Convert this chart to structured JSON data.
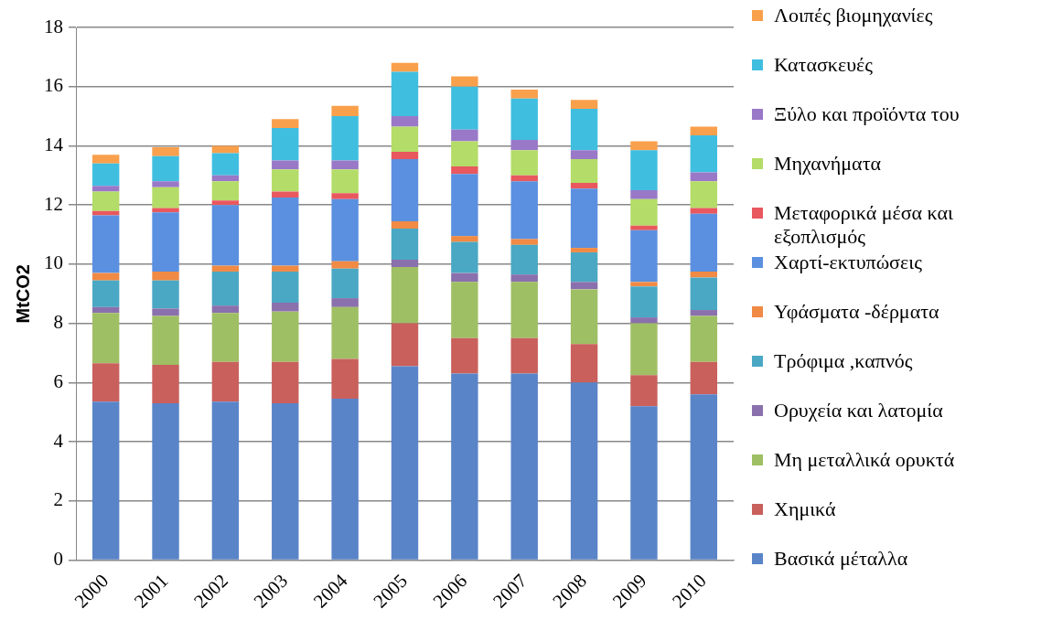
{
  "chart_data": {
    "type": "bar",
    "stacked": true,
    "ylabel": "MtCO2",
    "categories": [
      "2000",
      "2001",
      "2002",
      "2003",
      "2004",
      "2005",
      "2006",
      "2007",
      "2008",
      "2009",
      "2010"
    ],
    "ylim": [
      0,
      18
    ],
    "yticks": [
      0,
      2,
      4,
      6,
      8,
      10,
      12,
      14,
      16,
      18
    ],
    "grid": "y",
    "legend": "right",
    "series": [
      {
        "name": "Βασικά μέταλλα",
        "color": "#5a84c8",
        "values": [
          5.35,
          5.3,
          5.35,
          5.3,
          5.45,
          6.55,
          6.3,
          6.3,
          6.0,
          5.2,
          5.6
        ]
      },
      {
        "name": "Χημικά",
        "color": "#c9605c",
        "values": [
          1.3,
          1.3,
          1.35,
          1.4,
          1.35,
          1.45,
          1.2,
          1.2,
          1.3,
          1.05,
          1.1
        ]
      },
      {
        "name": "Μη μεταλλικά ορυκτά",
        "color": "#9fbf64",
        "values": [
          1.7,
          1.65,
          1.65,
          1.7,
          1.75,
          1.9,
          1.9,
          1.9,
          1.85,
          1.75,
          1.55
        ]
      },
      {
        "name": "Ορυχεία και λατομία",
        "color": "#8a70ac",
        "values": [
          0.2,
          0.25,
          0.25,
          0.3,
          0.3,
          0.25,
          0.3,
          0.25,
          0.25,
          0.2,
          0.2
        ]
      },
      {
        "name": "Τρόφιμα ,καπνός",
        "color": "#4aa8c4",
        "values": [
          0.9,
          0.95,
          1.15,
          1.05,
          1.0,
          1.05,
          1.05,
          1.0,
          1.0,
          1.05,
          1.1
        ]
      },
      {
        "name": "Υφάσματα -δέρματα",
        "color": "#f08a44",
        "values": [
          0.25,
          0.3,
          0.2,
          0.2,
          0.25,
          0.25,
          0.2,
          0.2,
          0.15,
          0.15,
          0.2
        ]
      },
      {
        "name": "Χαρτί-εκτυπώσεις",
        "color": "#5b90e0",
        "values": [
          1.95,
          2.0,
          2.05,
          2.3,
          2.1,
          2.1,
          2.1,
          1.95,
          2.0,
          1.75,
          1.95
        ]
      },
      {
        "name": "Μεταφορικά μέσα και εξοπλισμός",
        "color": "#e8585e",
        "values": [
          0.15,
          0.15,
          0.15,
          0.2,
          0.2,
          0.25,
          0.25,
          0.2,
          0.2,
          0.15,
          0.2
        ]
      },
      {
        "name": "Μηχανήματα",
        "color": "#b4dc68",
        "values": [
          0.65,
          0.7,
          0.65,
          0.75,
          0.8,
          0.85,
          0.85,
          0.85,
          0.8,
          0.9,
          0.9
        ]
      },
      {
        "name": "Ξύλο και προϊόντα του",
        "color": "#9a78c8",
        "values": [
          0.2,
          0.2,
          0.2,
          0.3,
          0.3,
          0.35,
          0.4,
          0.35,
          0.3,
          0.3,
          0.3
        ]
      },
      {
        "name": "Κατασκευές",
        "color": "#40bee0",
        "values": [
          0.75,
          0.85,
          0.75,
          1.1,
          1.5,
          1.5,
          1.45,
          1.4,
          1.4,
          1.35,
          1.25
        ]
      },
      {
        "name": "Λοιπές βιομηχανίες",
        "color": "#f9a04c",
        "values": [
          0.3,
          0.3,
          0.25,
          0.3,
          0.35,
          0.3,
          0.35,
          0.3,
          0.3,
          0.3,
          0.3
        ]
      }
    ]
  }
}
